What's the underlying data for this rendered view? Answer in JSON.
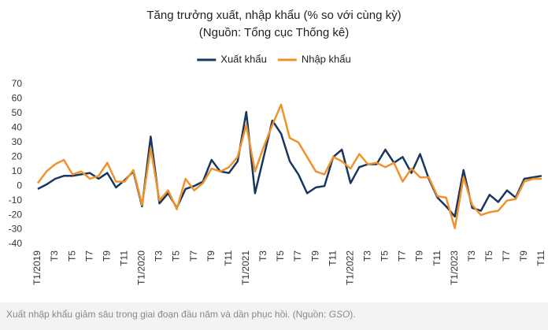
{
  "chart_data": {
    "type": "line",
    "title": "Tăng trưởng xuất, nhập khẩu (% so với cùng kỳ)",
    "subtitle": "(Nguồn: Tổng cục Thống kê)",
    "categories": [
      "T1/2019",
      null,
      "T3",
      null,
      "T5",
      null,
      "T7",
      null,
      "T9",
      null,
      "T11",
      null,
      "T1/2020",
      null,
      "T3",
      null,
      "T5",
      null,
      "T7",
      null,
      "T9",
      null,
      "T11",
      null,
      "T1/2021",
      null,
      "T3",
      null,
      "T5",
      null,
      "T7",
      null,
      "T9",
      null,
      "T11",
      null,
      "T1/2022",
      null,
      "T3",
      null,
      "T5",
      null,
      "T7",
      null,
      "T9",
      null,
      "T11",
      null,
      "T1/2023",
      null,
      "T3",
      null,
      "T5",
      null,
      "T7",
      null,
      "T9",
      null,
      "T11"
    ],
    "series": [
      {
        "name": "Xuất khẩu",
        "color": "#17375e",
        "values": [
          -2,
          1,
          5,
          7,
          7,
          8,
          9,
          5,
          9,
          -1,
          4,
          10,
          -14,
          34,
          -12,
          -5,
          -15,
          -2,
          0,
          3,
          18,
          10,
          9,
          17,
          51,
          -5,
          20,
          45,
          36,
          17,
          8,
          -5,
          -1,
          0,
          20,
          25,
          2,
          13,
          15,
          15,
          25,
          16,
          20,
          9,
          22,
          5,
          -8,
          -14,
          -21,
          11,
          -15,
          -17,
          -6,
          -11,
          -3,
          -8,
          5,
          6,
          7
        ]
      },
      {
        "name": "Nhập khẩu",
        "color": "#f0922b",
        "values": [
          2,
          10,
          15,
          18,
          8,
          10,
          5,
          7,
          16,
          3,
          3,
          11,
          -13,
          26,
          -10,
          -3,
          -16,
          5,
          -3,
          2,
          12,
          10,
          13,
          20,
          42,
          10,
          27,
          42,
          56,
          33,
          30,
          20,
          10,
          8,
          20,
          17,
          12,
          22,
          15,
          16,
          13,
          16,
          3,
          12,
          6,
          6,
          -7,
          -8,
          -29,
          6,
          -13,
          -20,
          -18,
          -17,
          -10,
          -9,
          3,
          5,
          5
        ]
      }
    ],
    "ylim": [
      -40,
      70
    ],
    "yticks": [
      -40,
      -30,
      -20,
      -10,
      0,
      10,
      20,
      30,
      40,
      50,
      60,
      70
    ],
    "grid": false,
    "legend": "top",
    "caption": [
      "Xuất nhập khẩu giảm sâu trong giai đoạn đầu năm và dần phục hồi. (Nguồn: ",
      "GSO",
      ")."
    ]
  }
}
